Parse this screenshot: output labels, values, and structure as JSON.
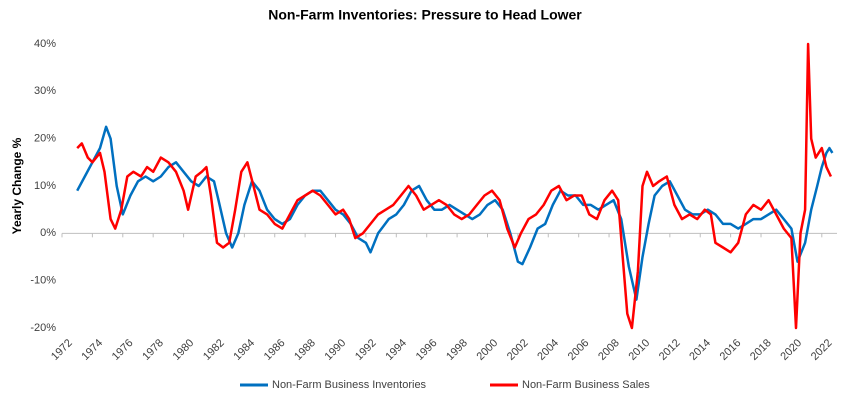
{
  "chart_data": {
    "type": "line",
    "title": "Non-Farm Inventories: Pressure to Head Lower",
    "y_label": "Yearly Change %",
    "xlim": [
      1972,
      2023
    ],
    "xticks": [
      1972,
      1974,
      1976,
      1978,
      1980,
      1982,
      1984,
      1986,
      1988,
      1990,
      1992,
      1994,
      1996,
      1998,
      2000,
      2002,
      2004,
      2006,
      2008,
      2010,
      2012,
      2014,
      2016,
      2018,
      2020,
      2022
    ],
    "ylim": [
      -20,
      40
    ],
    "yticks": [
      {
        "value": -20,
        "label": "-20%"
      },
      {
        "value": -10,
        "label": "-10%"
      },
      {
        "value": 0,
        "label": "0%"
      },
      {
        "value": 10,
        "label": "10%"
      },
      {
        "value": 20,
        "label": "20%"
      },
      {
        "value": 30,
        "label": "30%"
      },
      {
        "value": 40,
        "label": "40%"
      }
    ],
    "legend": "bottom",
    "series": [
      {
        "name": "Non-Farm Business Inventories",
        "color": "#0070c0",
        "x": [
          1973.0,
          1973.5,
          1974.0,
          1974.5,
          1974.9,
          1975.2,
          1975.6,
          1976.0,
          1976.5,
          1977.0,
          1977.5,
          1978.0,
          1978.5,
          1979.0,
          1979.5,
          1980.0,
          1980.5,
          1981.0,
          1981.5,
          1982.0,
          1982.3,
          1982.8,
          1983.2,
          1983.6,
          1984.0,
          1984.5,
          1985.0,
          1985.5,
          1986.0,
          1986.5,
          1987.0,
          1987.5,
          1988.0,
          1988.5,
          1989.0,
          1989.5,
          1990.0,
          1990.5,
          1991.0,
          1991.5,
          1992.0,
          1992.3,
          1992.8,
          1993.5,
          1994.0,
          1994.5,
          1995.0,
          1995.5,
          1996.0,
          1996.5,
          1997.0,
          1997.5,
          1998.0,
          1998.5,
          1999.0,
          1999.5,
          2000.0,
          2000.5,
          2001.0,
          2001.5,
          2002.0,
          2002.3,
          2002.8,
          2003.3,
          2003.8,
          2004.3,
          2004.8,
          2005.3,
          2005.8,
          2006.3,
          2006.8,
          2007.3,
          2007.8,
          2008.3,
          2008.8,
          2009.3,
          2009.8,
          2010.2,
          2010.6,
          2011.0,
          2011.5,
          2012.0,
          2012.5,
          2013.0,
          2013.5,
          2014.0,
          2014.5,
          2015.0,
          2015.5,
          2016.0,
          2016.5,
          2017.0,
          2017.5,
          2018.0,
          2018.5,
          2019.0,
          2019.5,
          2020.0,
          2020.4,
          2020.9,
          2021.3,
          2021.7,
          2022.0,
          2022.3,
          2022.5,
          2022.7
        ],
        "values": [
          9,
          12,
          15,
          18,
          22.5,
          20,
          10,
          4,
          8,
          11,
          12,
          11,
          12,
          14,
          15,
          13,
          11,
          10,
          12,
          11,
          7,
          0,
          -3,
          0,
          6,
          11,
          9,
          5,
          3,
          2,
          3,
          6,
          8,
          9,
          9,
          7,
          5,
          4,
          2,
          -1,
          -2,
          -4,
          0,
          3,
          4,
          6,
          9,
          10,
          7,
          5,
          5,
          6,
          5,
          4,
          3,
          4,
          6,
          7,
          5,
          0,
          -6,
          -6.5,
          -3,
          1,
          2,
          6,
          9,
          8,
          8,
          6,
          6,
          5,
          6,
          7,
          3,
          -7,
          -14,
          -5,
          2,
          8,
          10,
          11,
          8,
          5,
          4,
          4,
          5,
          4,
          2,
          2,
          1,
          2,
          3,
          3,
          4,
          5,
          3,
          1,
          -6,
          -2,
          5,
          10,
          14,
          17,
          18,
          17
        ]
      },
      {
        "name": "Non-Farm Business Sales",
        "color": "#ff0000",
        "x": [
          1973.0,
          1973.3,
          1973.7,
          1974.0,
          1974.5,
          1974.8,
          1975.2,
          1975.5,
          1975.9,
          1976.3,
          1976.7,
          1977.2,
          1977.6,
          1978.0,
          1978.5,
          1979.0,
          1979.5,
          1980.0,
          1980.3,
          1980.8,
          1981.2,
          1981.5,
          1981.8,
          1982.2,
          1982.6,
          1983.0,
          1983.4,
          1983.8,
          1984.2,
          1984.6,
          1985.0,
          1985.5,
          1986.0,
          1986.5,
          1987.0,
          1987.5,
          1988.0,
          1988.5,
          1989.0,
          1989.5,
          1990.0,
          1990.5,
          1990.9,
          1991.3,
          1991.8,
          1992.3,
          1992.8,
          1993.3,
          1993.8,
          1994.3,
          1994.8,
          1995.3,
          1995.8,
          1996.3,
          1996.8,
          1997.3,
          1997.8,
          1998.3,
          1998.8,
          1999.3,
          1999.8,
          2000.3,
          2000.8,
          2001.3,
          2001.8,
          2002.2,
          2002.7,
          2003.2,
          2003.7,
          2004.2,
          2004.7,
          2005.2,
          2005.7,
          2006.2,
          2006.7,
          2007.2,
          2007.7,
          2008.2,
          2008.6,
          2008.9,
          2009.2,
          2009.5,
          2009.9,
          2010.2,
          2010.5,
          2010.9,
          2011.3,
          2011.8,
          2012.3,
          2012.8,
          2013.3,
          2013.8,
          2014.3,
          2014.7,
          2015.0,
          2015.5,
          2016.0,
          2016.5,
          2017.0,
          2017.5,
          2018.0,
          2018.5,
          2019.0,
          2019.5,
          2020.0,
          2020.3,
          2020.6,
          2020.9,
          2021.1,
          2021.3,
          2021.6,
          2022.0,
          2022.3,
          2022.6
        ],
        "values": [
          18,
          19,
          16,
          15,
          17,
          13,
          3,
          1,
          5,
          12,
          13,
          12,
          14,
          13,
          16,
          15,
          13,
          9,
          5,
          12,
          13,
          14,
          8,
          -2,
          -3,
          -2,
          5,
          13,
          15,
          10,
          5,
          4,
          2,
          1,
          4,
          7,
          8,
          9,
          8,
          6,
          4,
          5,
          3,
          -1,
          0,
          2,
          4,
          5,
          6,
          8,
          10,
          8,
          5,
          6,
          7,
          6,
          4,
          3,
          4,
          6,
          8,
          9,
          7,
          1,
          -3,
          0,
          3,
          4,
          6,
          9,
          10,
          7,
          8,
          8,
          4,
          3,
          7,
          9,
          7,
          -5,
          -17,
          -20,
          -8,
          10,
          13,
          10,
          11,
          12,
          6,
          3,
          4,
          3,
          5,
          4,
          -2,
          -3,
          -4,
          -2,
          4,
          6,
          5,
          7,
          4,
          1,
          -1,
          -20,
          0,
          5,
          40,
          20,
          16,
          18,
          14,
          12
        ]
      }
    ]
  }
}
